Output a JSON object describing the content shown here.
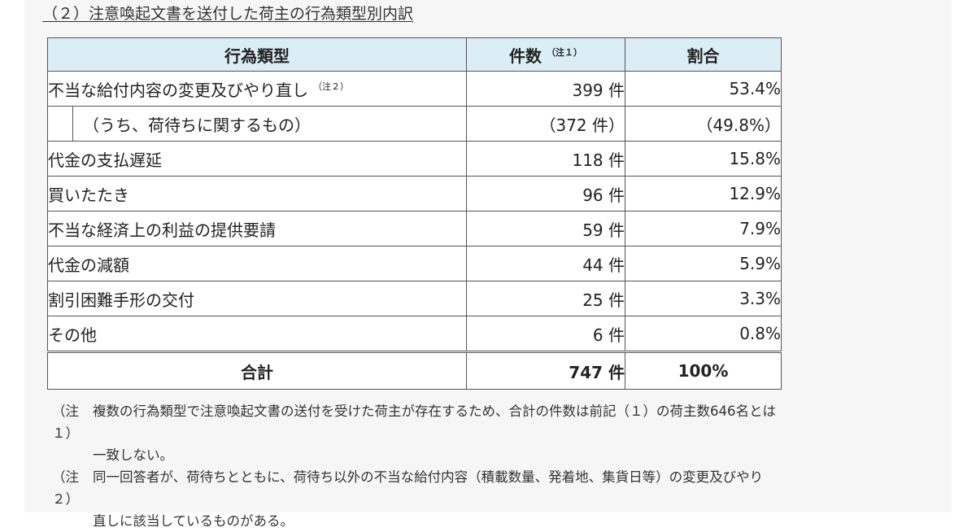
{
  "heading": "（２）注意喚起文書を送付した荷主の行為類型別内訳",
  "table": {
    "headers": {
      "category": "行為類型",
      "count": "件数",
      "count_note": "（注１）",
      "ratio": "割合"
    },
    "header_bg": "#dbeef5",
    "rows": [
      {
        "label": "不当な給付内容の変更及びやり直し",
        "note": "（注２）",
        "count": "399 件",
        "ratio": "53.4%"
      },
      {
        "label": "（うち、荷待ちに関するもの）",
        "count": "（372 件）",
        "ratio": "（49.8%）"
      },
      {
        "label": "代金の支払遅延",
        "count": "118 件",
        "ratio": "15.8%"
      },
      {
        "label": "買いたたき",
        "count": "96 件",
        "ratio": "12.9%"
      },
      {
        "label": "不当な経済上の利益の提供要請",
        "count": "59 件",
        "ratio": "7.9%"
      },
      {
        "label": "代金の減額",
        "count": "44 件",
        "ratio": "5.9%"
      },
      {
        "label": "割引困難手形の交付",
        "count": "25 件",
        "ratio": "3.3%"
      },
      {
        "label": "その他",
        "count": "6 件",
        "ratio": "0.8%"
      }
    ],
    "total": {
      "label": "合計",
      "count": "747 件",
      "ratio": "100%"
    }
  },
  "notes": [
    {
      "tag": "（注１）",
      "line1": "複数の行為類型で注意喚起文書の送付を受けた荷主が存在するため、合計の件数は前記（１）の荷主数646名とは",
      "line2": "一致しない。"
    },
    {
      "tag": "（注２）",
      "line1": "同一回答者が、荷待ちとともに、荷待ち以外の不当な給付内容（積載数量、発着地、集貨日等）の変更及びやり",
      "line2": "直しに該当しているものがある。"
    }
  ]
}
